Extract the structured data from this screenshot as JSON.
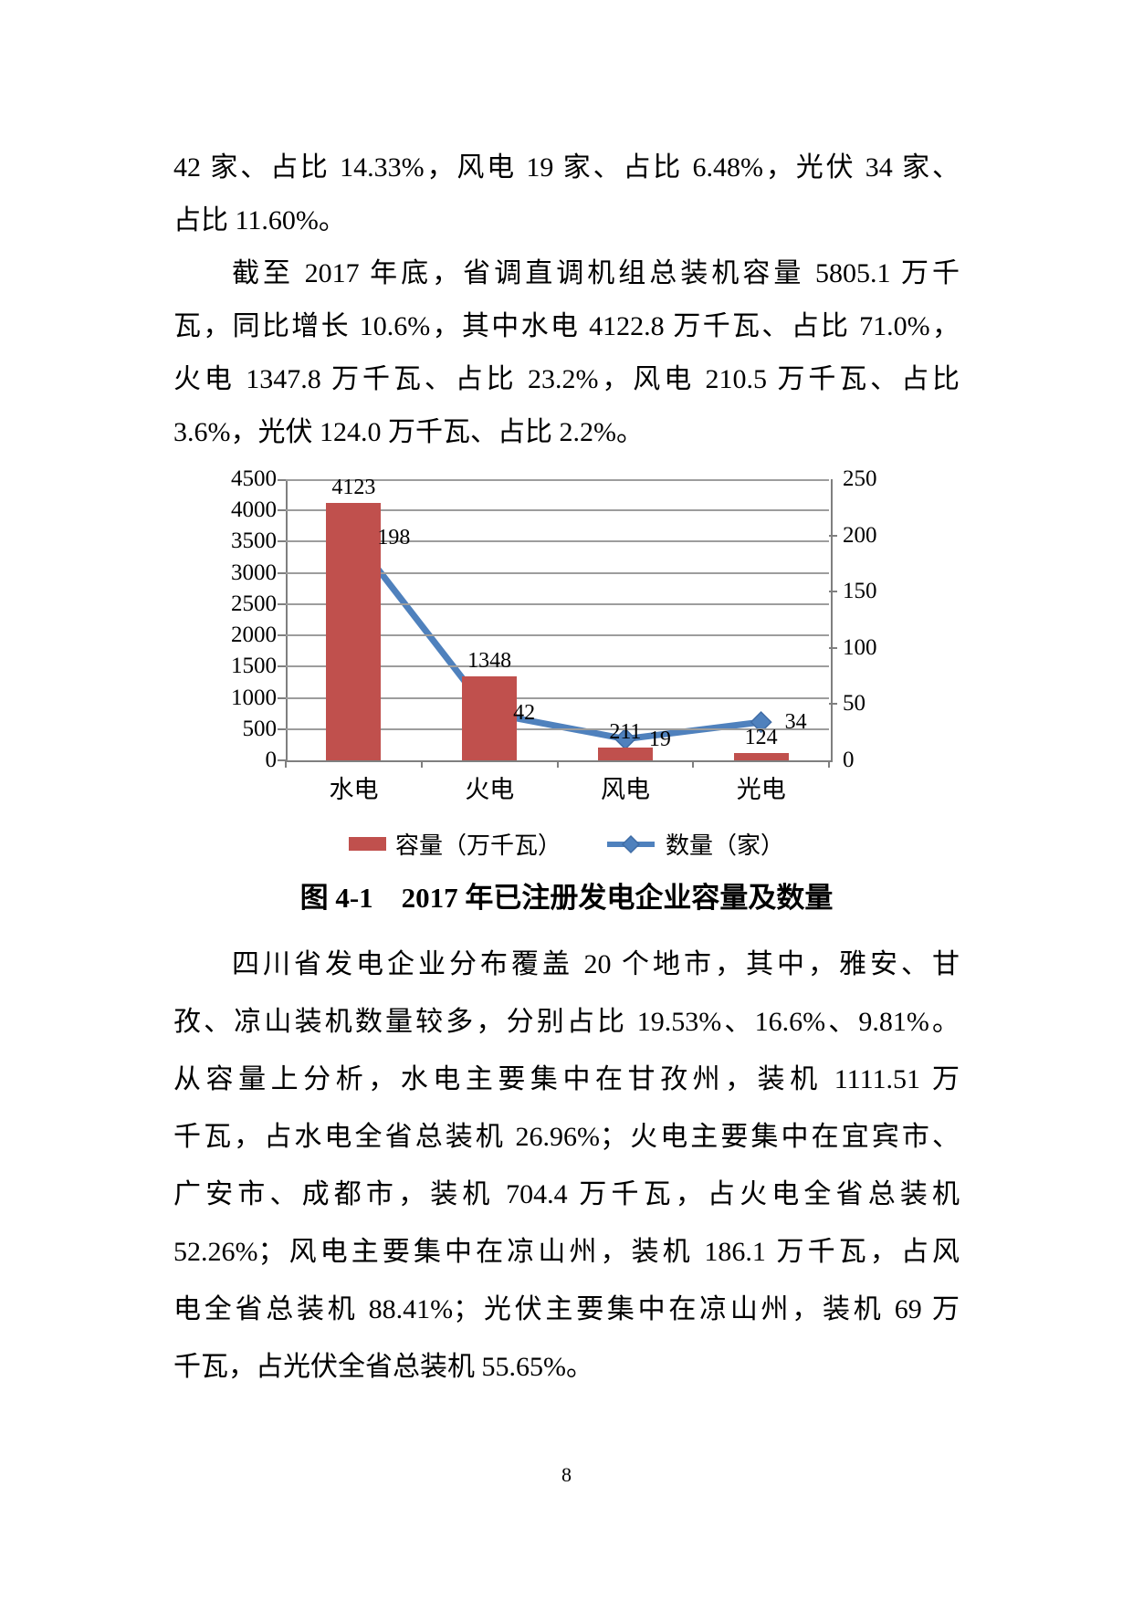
{
  "document": {
    "paragraphs_top": [
      {
        "name": "paragraph-1",
        "lines": [
          {
            "text": "42 家、占比 14.33%，风电 19 家、占比 6.48%，光伏 34 家、",
            "fill": true,
            "indent": false
          },
          {
            "text": "占比 11.60%。",
            "fill": false,
            "indent": false
          }
        ]
      },
      {
        "name": "paragraph-2",
        "lines": [
          {
            "text": "截至 2017 年底，省调直调机组总装机容量 5805.1 万千",
            "fill": true,
            "indent": true
          },
          {
            "text": "瓦，同比增长 10.6%，其中水电 4122.8 万千瓦、占比 71.0%，",
            "fill": true,
            "indent": false
          },
          {
            "text": "火电 1347.8 万千瓦、占比 23.2%，风电 210.5 万千瓦、占比",
            "fill": true,
            "indent": false
          },
          {
            "text": "3.6%，光伏 124.0 万千瓦、占比 2.2%。",
            "fill": false,
            "indent": false
          }
        ]
      }
    ],
    "paragraphs_bottom": [
      {
        "name": "paragraph-3",
        "lines": [
          {
            "text": "四川省发电企业分布覆盖 20 个地市，其中，雅安、甘",
            "fill": true,
            "indent": true
          },
          {
            "text": "孜、凉山装机数量较多，分别占比 19.53%、16.6%、9.81%。",
            "fill": true,
            "indent": false
          },
          {
            "text": "从容量上分析，水电主要集中在甘孜州，装机 1111.51 万",
            "fill": true,
            "indent": false
          },
          {
            "text": "千瓦，占水电全省总装机 26.96%；火电主要集中在宜宾市、",
            "fill": true,
            "indent": false
          },
          {
            "text": "广安市、成都市，装机 704.4 万千瓦，占火电全省总装机",
            "fill": true,
            "indent": false
          },
          {
            "text": "52.26%；风电主要集中在凉山州，装机 186.1 万千瓦，占风",
            "fill": true,
            "indent": false
          },
          {
            "text": "电全省总装机 88.41%；光伏主要集中在凉山州，装机 69 万",
            "fill": true,
            "indent": false
          },
          {
            "text": "千瓦，占光伏全省总装机 55.65%。",
            "fill": false,
            "indent": false
          }
        ]
      }
    ],
    "figure_caption": "图 4-1　2017 年已注册发电企业容量及数量",
    "page_number": "8"
  },
  "chart_data": {
    "type": "bar+line-combo",
    "categories": [
      "水电",
      "火电",
      "风电",
      "光电"
    ],
    "series": [
      {
        "name": "容量（万千瓦）",
        "type": "bar",
        "axis": "left",
        "values": [
          4123,
          1348,
          211,
          124
        ],
        "labels": [
          "4123",
          "1348",
          "211",
          "124"
        ],
        "color": "#C0504D"
      },
      {
        "name": "数量（家）",
        "type": "line",
        "axis": "right",
        "values": [
          198,
          42,
          19,
          34
        ],
        "labels": [
          "198",
          "42",
          "19",
          "34"
        ],
        "color": "#4F81BD"
      }
    ],
    "left_axis": {
      "min": 0,
      "max": 4500,
      "step": 500,
      "tick_labels": [
        "0",
        "500",
        "1000",
        "1500",
        "2000",
        "2500",
        "3000",
        "3500",
        "4000",
        "4500"
      ]
    },
    "right_axis": {
      "min": 0,
      "max": 250,
      "step": 50,
      "tick_labels": [
        "0",
        "50",
        "100",
        "150",
        "200",
        "250"
      ]
    },
    "grid": "horizontal",
    "data_labels": true,
    "legend_position": "bottom",
    "colors": {
      "bar": "#C0504D",
      "line": "#4F81BD",
      "line_marker_border": "#3F6CA5",
      "gridline": "#9d9d9d",
      "axis": "#7f7f7f",
      "text": "#000000"
    }
  }
}
